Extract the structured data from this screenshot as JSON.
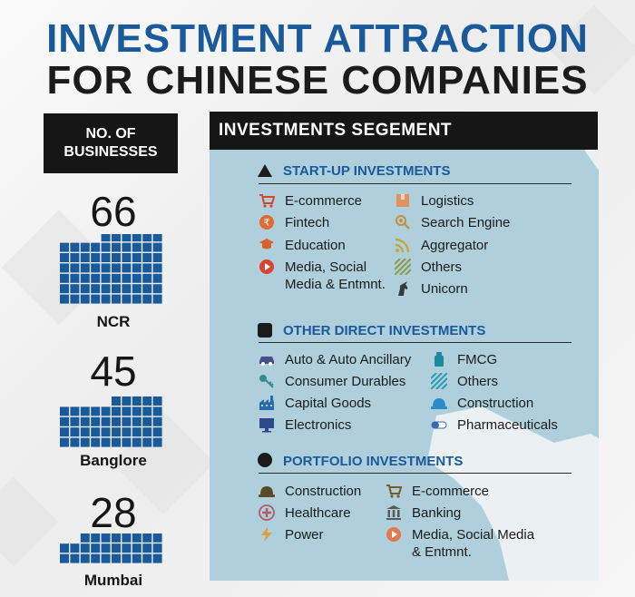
{
  "title": {
    "line1": "INVESTMENT ATTRACTION",
    "line2": "FOR CHINESE COMPANIES"
  },
  "left": {
    "header": "NO. OF\nBUSINESSES",
    "cities": [
      {
        "name": "NCR",
        "count": "66"
      },
      {
        "name": "Banglore",
        "count": "45"
      },
      {
        "name": "Mumbai",
        "count": "28"
      }
    ]
  },
  "panel": {
    "header": "INVESTMENTS SEGEMENT",
    "sections": [
      {
        "title": "START-UP INVESTMENTS",
        "items": [
          {
            "label": "E-commerce",
            "icon": "cart-icon",
            "color": "#d9432f"
          },
          {
            "label": "Logistics",
            "icon": "package-icon",
            "color": "#e0925e"
          },
          {
            "label": "Fintech",
            "icon": "rupee-coin-icon",
            "color": "#e06a2f"
          },
          {
            "label": "Search Engine",
            "icon": "magnifier-icon",
            "color": "#c9913d"
          },
          {
            "label": "Education",
            "icon": "graduation-cap-icon",
            "color": "#d9602b"
          },
          {
            "label": "Aggregator",
            "icon": "rss-icon",
            "color": "#c8a43b"
          },
          {
            "label": "Media, Social\nMedia & Entmnt.",
            "icon": "play-icon",
            "color": "#d9432f"
          },
          {
            "label": "Others",
            "icon": "stripes-icon",
            "color": "#8c9a4a"
          },
          {
            "label": "Unicorn",
            "icon": "unicorn-icon",
            "color": "#3a3a3a"
          }
        ]
      },
      {
        "title": "OTHER DIRECT INVESTMENTS",
        "items": [
          {
            "label": "Auto & Auto Ancillary",
            "icon": "car-icon",
            "color": "#4a4f8a"
          },
          {
            "label": "FMCG",
            "icon": "bottle-icon",
            "color": "#1b8ca0"
          },
          {
            "label": "Consumer Durables",
            "icon": "key-icon",
            "color": "#3a8c8c"
          },
          {
            "label": "Others",
            "icon": "stripes-icon",
            "color": "#2a9cb4"
          },
          {
            "label": "Capital Goods",
            "icon": "factory-icon",
            "color": "#2a6aa8"
          },
          {
            "label": "Construction",
            "icon": "hardhat-icon",
            "color": "#2a8cc8"
          },
          {
            "label": "Electronics",
            "icon": "monitor-icon",
            "color": "#2a4a8a"
          },
          {
            "label": "Pharmaceuticals",
            "icon": "pill-icon",
            "color": "#3a6ab4"
          }
        ]
      },
      {
        "title": "PORTFOLIO INVESTMENTS",
        "items": [
          {
            "label": "Construction",
            "icon": "hardhat-icon",
            "color": "#5a4a2a"
          },
          {
            "label": "E-commerce",
            "icon": "cart-icon",
            "color": "#7a5a2a"
          },
          {
            "label": "Healthcare",
            "icon": "medical-cross-icon",
            "color": "#b45a6a"
          },
          {
            "label": "Banking",
            "icon": "bank-icon",
            "color": "#5a5a5a"
          },
          {
            "label": "Power",
            "icon": "lightning-icon",
            "color": "#e0a040"
          },
          {
            "label": "Media, Social Media\n& Entmnt.",
            "icon": "play-icon",
            "color": "#e07a4a"
          }
        ]
      }
    ]
  }
}
